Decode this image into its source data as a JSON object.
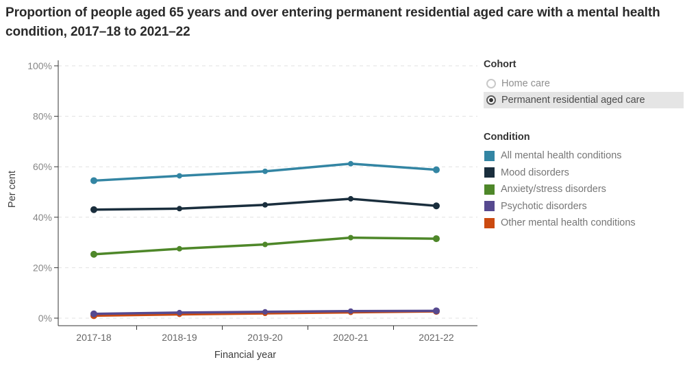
{
  "title": "Proportion of people aged 65 years and over entering permanent residential aged care with a mental health condition, 2017–18 to 2021–22",
  "cohort_legend": {
    "heading": "Cohort",
    "options": [
      {
        "label": "Home care",
        "selected": false
      },
      {
        "label": "Permanent residential aged care",
        "selected": true
      }
    ]
  },
  "condition_legend": {
    "heading": "Condition",
    "items": [
      {
        "label": "All mental health conditions",
        "color": "#3385a3"
      },
      {
        "label": "Mood disorders",
        "color": "#1a2e3d"
      },
      {
        "label": "Anxiety/stress disorders",
        "color": "#4e8729"
      },
      {
        "label": "Psychotic disorders",
        "color": "#56498f"
      },
      {
        "label": "Other mental health conditions",
        "color": "#cb4a10"
      }
    ]
  },
  "chart_data": {
    "type": "line",
    "x": [
      "2017-18",
      "2018-19",
      "2019-20",
      "2020-21",
      "2021-22"
    ],
    "series": [
      {
        "name": "All mental health conditions",
        "color": "#3385a3",
        "values": [
          54.5,
          56.4,
          58.2,
          61.2,
          58.8
        ]
      },
      {
        "name": "Mood disorders",
        "color": "#1a2e3d",
        "values": [
          43.0,
          43.4,
          44.9,
          47.3,
          44.5
        ]
      },
      {
        "name": "Anxiety/stress disorders",
        "color": "#4e8729",
        "values": [
          25.3,
          27.5,
          29.2,
          31.9,
          31.5
        ]
      },
      {
        "name": "Other mental health conditions",
        "color": "#cb4a10",
        "values": [
          1.0,
          1.5,
          1.9,
          2.3,
          2.7
        ]
      },
      {
        "name": "Psychotic disorders",
        "color": "#56498f",
        "values": [
          1.7,
          2.2,
          2.5,
          2.8,
          2.9
        ]
      }
    ],
    "xlabel": "Financial year",
    "ylabel": "Per cent",
    "ylim": [
      0,
      100
    ],
    "yticks": {
      "values": [
        0,
        20,
        40,
        60,
        80,
        100
      ],
      "labels": [
        "0%",
        "20%",
        "40%",
        "60%",
        "80%",
        "100%"
      ]
    },
    "grid": "horizontal-dashed",
    "legend_position": "right"
  }
}
